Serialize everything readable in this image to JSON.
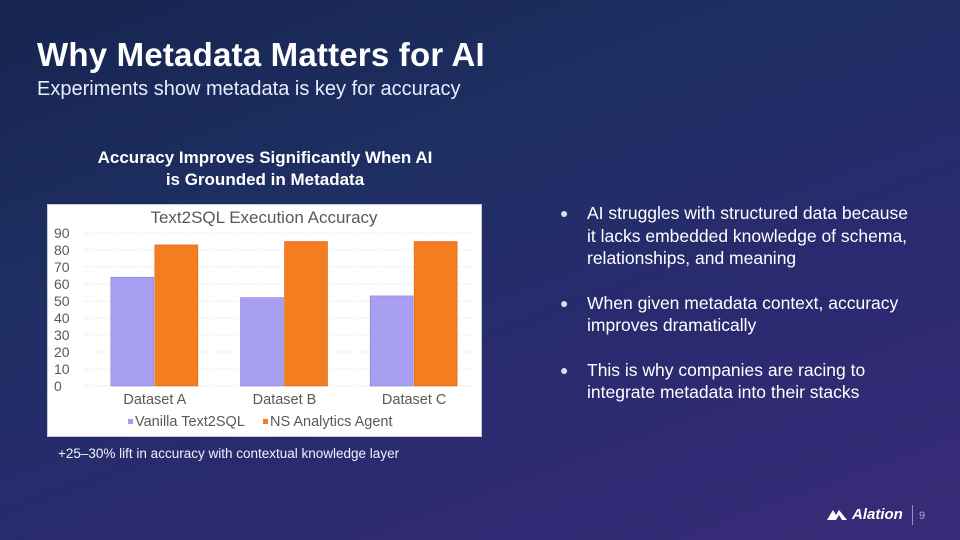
{
  "slide": {
    "title": "Why Metadata Matters for AI",
    "subtitle": "Experiments show metadata is key for accuracy",
    "chart_heading": "Accuracy Improves Significantly When AI is Grounded in Metadata",
    "chart_caption": "+25–30% lift in accuracy with contextual knowledge layer",
    "bullets": [
      "AI struggles with structured data because it lacks embedded knowledge of schema, relationships, and meaning",
      "When given metadata context, accuracy improves dramatically",
      "This is why companies are racing to integrate metadata into their stacks"
    ],
    "bullet_glyph": "●",
    "logo_text": "Alation",
    "logo_icon": "alation-logo-icon",
    "page_number": "9"
  },
  "colors": {
    "series_vanilla": "#a79ef2",
    "series_ns": "#f47d20"
  },
  "chart_data": {
    "type": "bar",
    "title": "Text2SQL Execution Accuracy",
    "categories": [
      "Dataset A",
      "Dataset B",
      "Dataset C"
    ],
    "series": [
      {
        "name": "Vanilla Text2SQL",
        "values": [
          64,
          52,
          53
        ]
      },
      {
        "name": "NS Analytics Agent",
        "values": [
          83,
          85,
          85
        ]
      }
    ],
    "ylim": [
      0,
      90
    ],
    "yticks": [
      "90",
      "80",
      "70",
      "60",
      "50",
      "40",
      "30",
      "20",
      "10",
      "0"
    ],
    "grid": true,
    "legend": "bottom",
    "xlabel": "",
    "ylabel": ""
  }
}
